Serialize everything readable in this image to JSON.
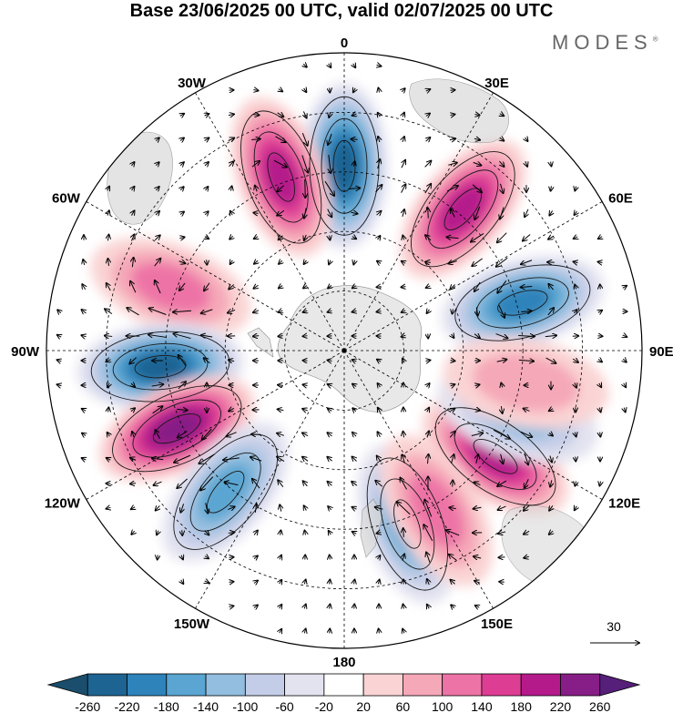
{
  "title": "Base 23/06/2025 00 UTC, valid 02/07/2025 00 UTC",
  "brand": {
    "name": "MODES",
    "mark": "®"
  },
  "map": {
    "projection": "polar stereographic",
    "hemisphere": "southern",
    "longitude_labels": [
      "0",
      "30E",
      "60E",
      "90E",
      "120E",
      "150E",
      "180",
      "150W",
      "120W",
      "90W",
      "60W",
      "30W"
    ],
    "graticule": "dashed",
    "field": "anomaly shading with streamlines and wind vectors"
  },
  "vector_reference": {
    "value": "30"
  },
  "colorbar": {
    "ticks": [
      "-260",
      "-220",
      "-180",
      "-140",
      "-100",
      "-60",
      "-20",
      "20",
      "60",
      "100",
      "140",
      "180",
      "220",
      "260"
    ],
    "colors": [
      "#1a4e6c",
      "#1e6493",
      "#2e83ba",
      "#5aa5d1",
      "#93bedf",
      "#c4cde7",
      "#e3e3f0",
      "#ffffff",
      "#fad4d4",
      "#f5a8b8",
      "#ed73a6",
      "#de3d94",
      "#b51a8b",
      "#871d86",
      "#551f7a"
    ]
  },
  "anomalies": [
    {
      "sign": "negative",
      "intensity": 5,
      "sector": "near 0"
    },
    {
      "sign": "positive",
      "intensity": 4,
      "sector": "20W"
    },
    {
      "sign": "positive",
      "intensity": 4,
      "sector": "40E"
    },
    {
      "sign": "positive",
      "intensity": 2,
      "sector": "70W"
    },
    {
      "sign": "negative",
      "intensity": 4,
      "sector": "75E"
    },
    {
      "sign": "negative",
      "intensity": 5,
      "sector": "95W"
    },
    {
      "sign": "positive",
      "intensity": 5,
      "sector": "115W"
    },
    {
      "sign": "negative",
      "intensity": 3,
      "sector": "140W"
    },
    {
      "sign": "positive",
      "intensity": 4,
      "sector": "125E"
    },
    {
      "sign": "negative",
      "intensity": 3,
      "sector": "160E"
    },
    {
      "sign": "negative",
      "intensity": 2,
      "sector": "110E"
    },
    {
      "sign": "positive",
      "intensity": 1,
      "sector": "100E"
    },
    {
      "sign": "positive",
      "intensity": 2,
      "sector": "150E"
    }
  ]
}
